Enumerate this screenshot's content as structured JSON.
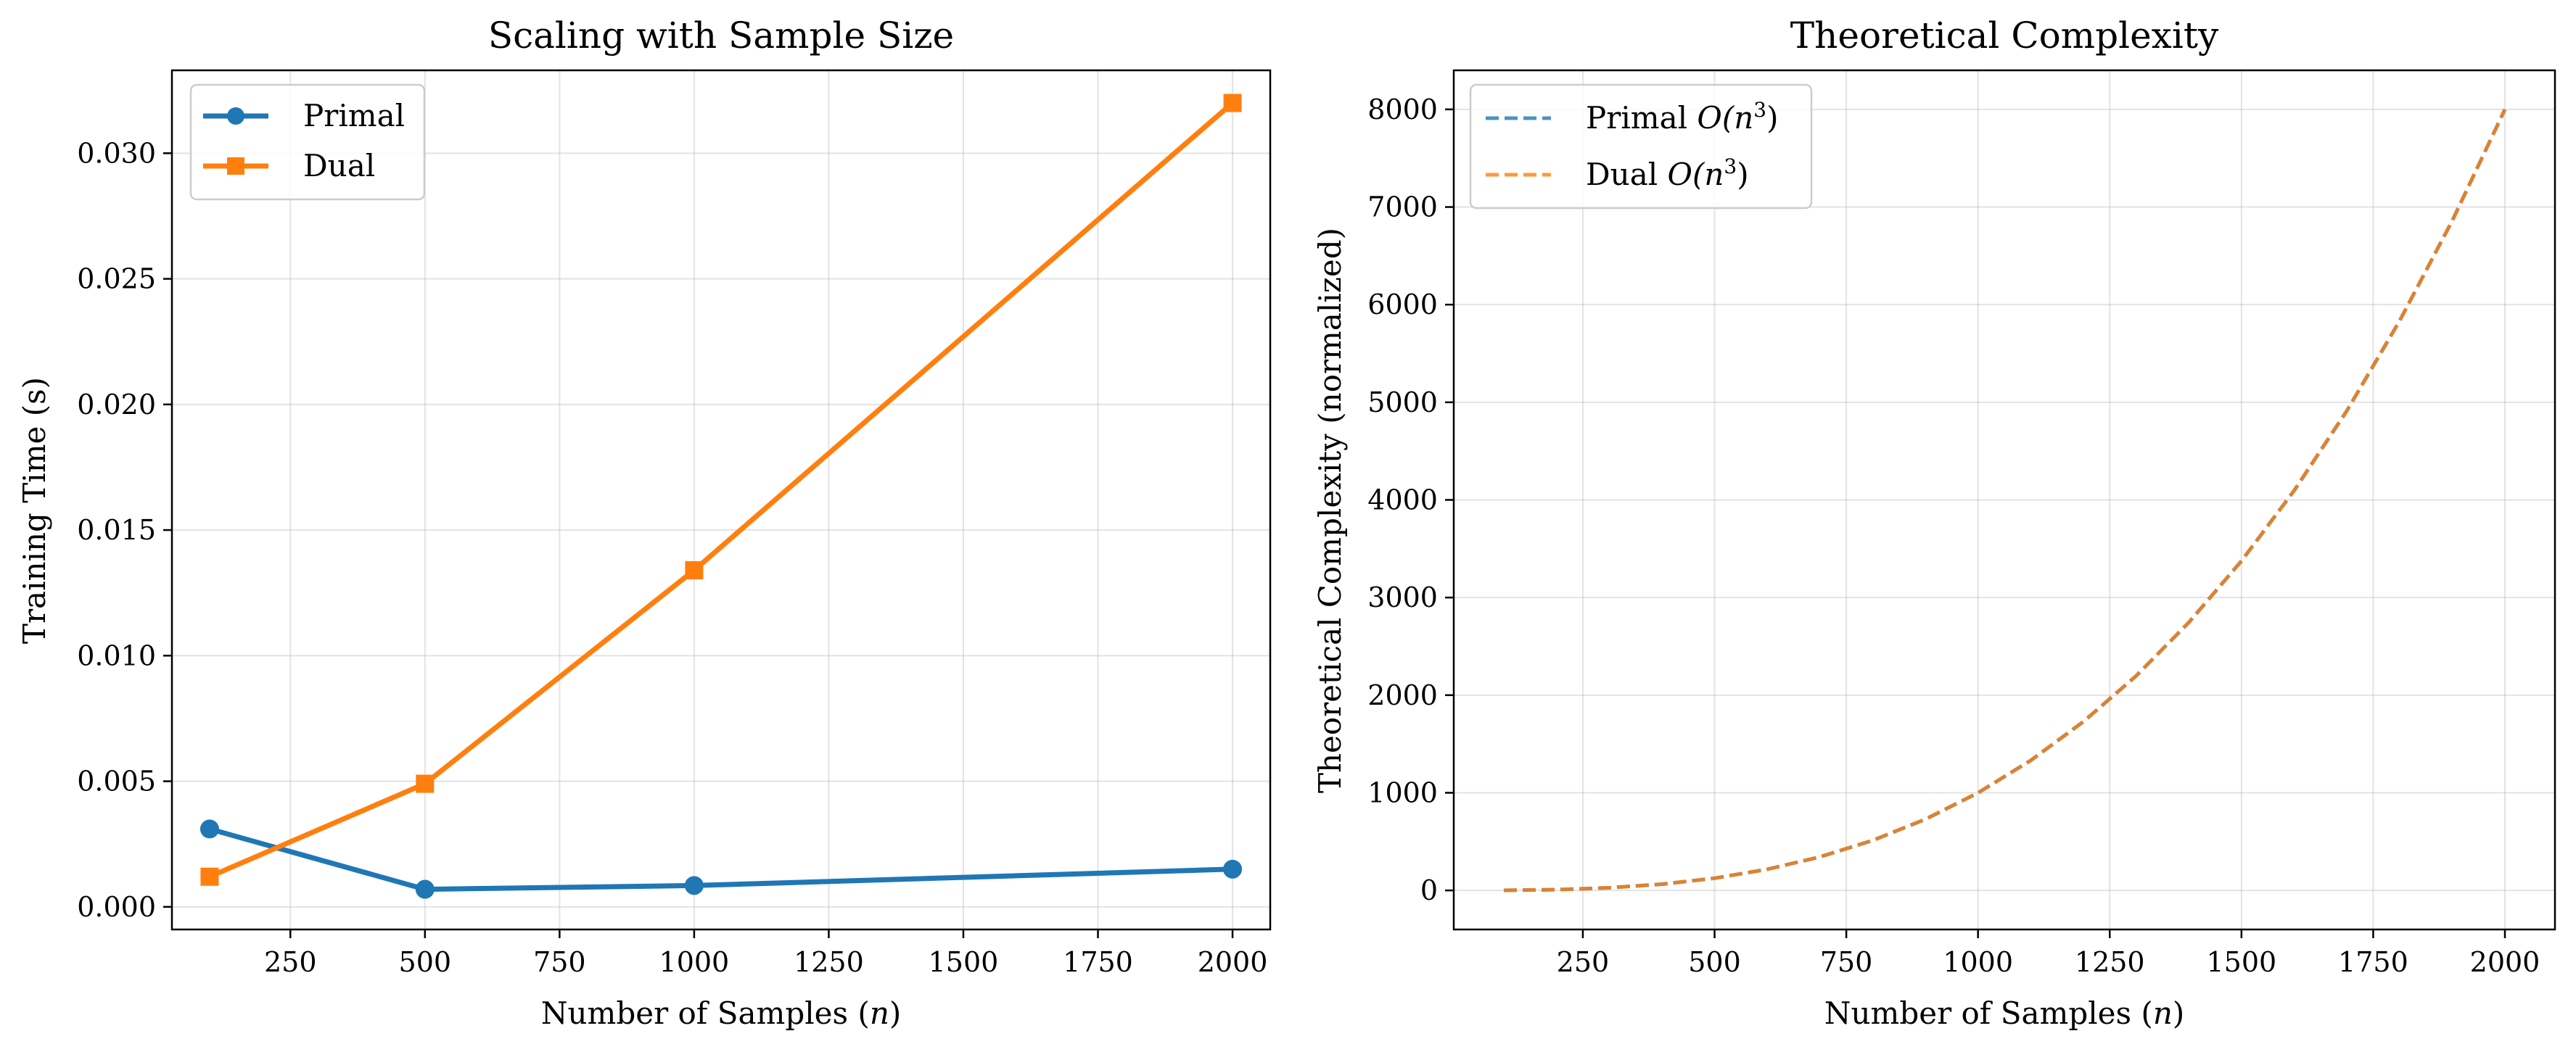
{
  "chart_data": [
    {
      "type": "line",
      "title": "Scaling with Sample Size",
      "xlabel_prefix": "Number of Samples (",
      "xlabel_var": "n",
      "xlabel_suffix": ")",
      "ylabel": "Training Time (s)",
      "xlim": [
        30,
        2070
      ],
      "ylim": [
        -0.0009,
        0.0333
      ],
      "xticks": [
        250,
        500,
        750,
        1000,
        1250,
        1500,
        1750,
        2000
      ],
      "xtick_labels": [
        "250",
        "500",
        "750",
        "1000",
        "1250",
        "1500",
        "1750",
        "2000"
      ],
      "yticks": [
        0.0,
        0.005,
        0.01,
        0.015,
        0.02,
        0.025,
        0.03
      ],
      "ytick_labels": [
        "0.000",
        "0.005",
        "0.010",
        "0.015",
        "0.020",
        "0.025",
        "0.030"
      ],
      "grid": true,
      "legend_position": "top-left",
      "series": [
        {
          "name": "Primal",
          "marker": "circle",
          "line": "solid",
          "color": "#1f77b4",
          "x": [
            100,
            500,
            1000,
            2000
          ],
          "y": [
            0.0031,
            0.0007,
            0.00085,
            0.0015
          ]
        },
        {
          "name": "Dual",
          "marker": "square",
          "line": "solid",
          "color": "#ff7f0e",
          "x": [
            100,
            500,
            1000,
            2000
          ],
          "y": [
            0.0012,
            0.0049,
            0.0134,
            0.032
          ]
        }
      ]
    },
    {
      "type": "line",
      "title": "Theoretical Complexity",
      "xlabel_prefix": "Number of Samples (",
      "xlabel_var": "n",
      "xlabel_suffix": ")",
      "ylabel": "Theoretical Complexity (normalized)",
      "xlim": [
        5,
        2095
      ],
      "ylim": [
        -400,
        8400
      ],
      "xticks": [
        250,
        500,
        750,
        1000,
        1250,
        1500,
        1750,
        2000
      ],
      "xtick_labels": [
        "250",
        "500",
        "750",
        "1000",
        "1250",
        "1500",
        "1750",
        "2000"
      ],
      "yticks": [
        0,
        1000,
        2000,
        3000,
        4000,
        5000,
        6000,
        7000,
        8000
      ],
      "ytick_labels": [
        "0",
        "1000",
        "2000",
        "3000",
        "4000",
        "5000",
        "6000",
        "7000",
        "8000"
      ],
      "grid": true,
      "legend_position": "top-left",
      "series": [
        {
          "name_prefix": "Primal ",
          "name_math": "O(n",
          "name_sup": "3",
          "name_end": ")",
          "marker": "none",
          "line": "dashed",
          "color": "#1f77b4",
          "opacity": 0.8,
          "x": [
            100,
            200,
            300,
            400,
            500,
            600,
            700,
            800,
            900,
            1000,
            1100,
            1200,
            1300,
            1400,
            1500,
            1600,
            1700,
            1800,
            1900,
            2000
          ],
          "y": [
            1,
            8,
            27,
            64,
            125,
            216,
            343,
            512,
            729,
            1000,
            1331,
            1728,
            2197,
            2744,
            3375,
            4096,
            4913,
            5832,
            6859,
            8000
          ]
        },
        {
          "name_prefix": "Dual ",
          "name_math": "O(n",
          "name_sup": "3",
          "name_end": ")",
          "marker": "none",
          "line": "dashed",
          "color": "#ff7f0e",
          "opacity": 0.8,
          "x": [
            100,
            200,
            300,
            400,
            500,
            600,
            700,
            800,
            900,
            1000,
            1100,
            1200,
            1300,
            1400,
            1500,
            1600,
            1700,
            1800,
            1900,
            2000
          ],
          "y": [
            1,
            8,
            27,
            64,
            125,
            216,
            343,
            512,
            729,
            1000,
            1331,
            1728,
            2197,
            2744,
            3375,
            4096,
            4913,
            5832,
            6859,
            8000
          ]
        }
      ]
    }
  ]
}
